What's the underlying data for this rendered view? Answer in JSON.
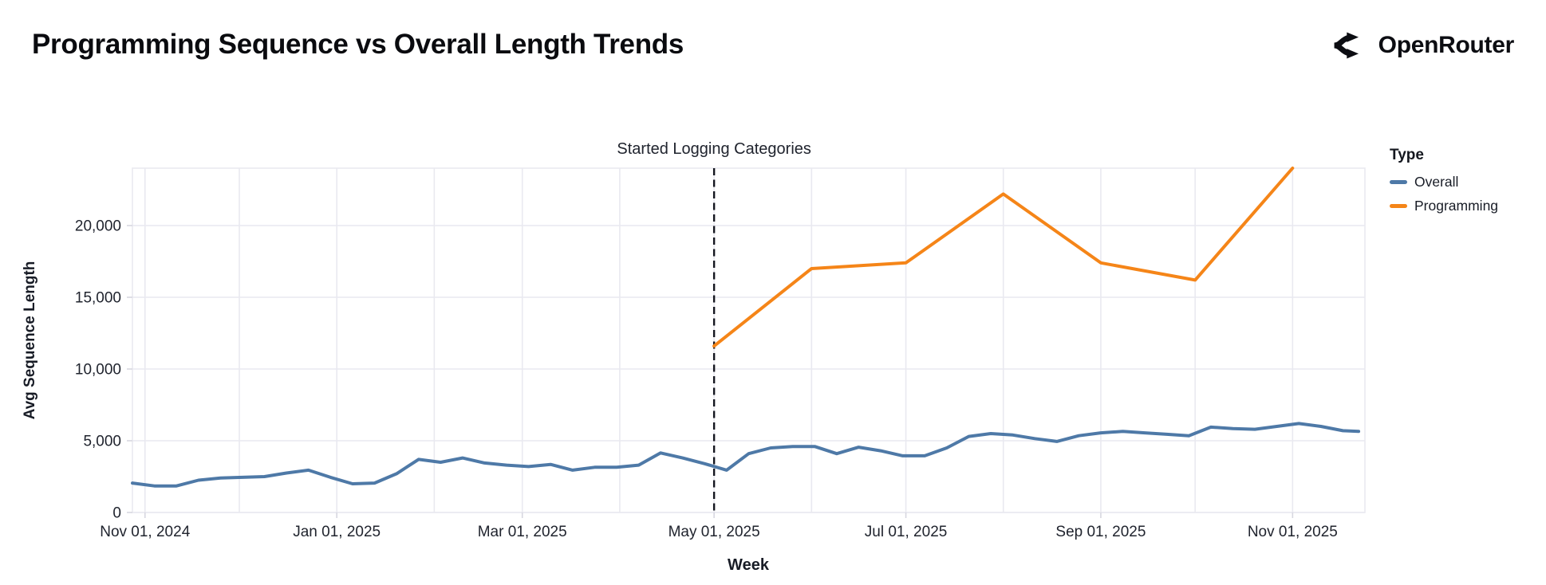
{
  "header": {
    "brand": "OpenRouter"
  },
  "legend": {
    "title": "Type",
    "items": [
      {
        "label": "Overall",
        "color": "#4e79a7"
      },
      {
        "label": "Programming",
        "color": "#f58518"
      }
    ]
  },
  "annotation": {
    "text": "Started Logging Categories",
    "date": "2025-05-01"
  },
  "colors": {
    "grid": "#e9e9f0",
    "tick_mark": "#d7d7e0",
    "tick_text": "#20242e",
    "dashed_rule": "#14161f",
    "overall_line": "#4e79a7",
    "programming_line": "#f58518"
  },
  "chart_data": {
    "type": "line",
    "title": "Programming Sequence vs Overall Length Trends",
    "xlabel": "Week",
    "ylabel": "Avg Sequence Length",
    "x_domain": [
      "2024-10-28",
      "2025-11-24"
    ],
    "ylim": [
      0,
      24000
    ],
    "grid": true,
    "legend_position": "right",
    "y_ticks": [
      {
        "value": 0,
        "label": "0"
      },
      {
        "value": 5000,
        "label": "5,000"
      },
      {
        "value": 10000,
        "label": "10,000"
      },
      {
        "value": 15000,
        "label": "15,000"
      },
      {
        "value": 20000,
        "label": "20,000"
      }
    ],
    "x_ticks": [
      {
        "date": "2024-11-01",
        "label": "Nov 01, 2024"
      },
      {
        "date": "2025-01-01",
        "label": "Jan 01, 2025"
      },
      {
        "date": "2025-03-01",
        "label": "Mar 01, 2025"
      },
      {
        "date": "2025-05-01",
        "label": "May 01, 2025"
      },
      {
        "date": "2025-07-01",
        "label": "Jul 01, 2025"
      },
      {
        "date": "2025-09-01",
        "label": "Sep 01, 2025"
      },
      {
        "date": "2025-11-01",
        "label": "Nov 01, 2025"
      }
    ],
    "month_gridlines": [
      "2024-11-01",
      "2024-12-01",
      "2025-01-01",
      "2025-02-01",
      "2025-03-01",
      "2025-04-01",
      "2025-05-01",
      "2025-06-01",
      "2025-07-01",
      "2025-08-01",
      "2025-09-01",
      "2025-10-01",
      "2025-11-01"
    ],
    "series": [
      {
        "name": "Overall",
        "color": "#4e79a7",
        "points": [
          [
            "2024-10-28",
            2050
          ],
          [
            "2024-11-04",
            1850
          ],
          [
            "2024-11-11",
            1850
          ],
          [
            "2024-11-18",
            2250
          ],
          [
            "2024-11-25",
            2400
          ],
          [
            "2024-12-02",
            2450
          ],
          [
            "2024-12-09",
            2500
          ],
          [
            "2024-12-16",
            2750
          ],
          [
            "2024-12-23",
            2950
          ],
          [
            "2024-12-30",
            2450
          ],
          [
            "2025-01-06",
            2000
          ],
          [
            "2025-01-13",
            2050
          ],
          [
            "2025-01-20",
            2700
          ],
          [
            "2025-01-27",
            3700
          ],
          [
            "2025-02-03",
            3500
          ],
          [
            "2025-02-10",
            3800
          ],
          [
            "2025-02-17",
            3450
          ],
          [
            "2025-02-24",
            3300
          ],
          [
            "2025-03-03",
            3200
          ],
          [
            "2025-03-10",
            3350
          ],
          [
            "2025-03-17",
            2950
          ],
          [
            "2025-03-24",
            3150
          ],
          [
            "2025-03-31",
            3150
          ],
          [
            "2025-04-07",
            3300
          ],
          [
            "2025-04-14",
            4150
          ],
          [
            "2025-04-21",
            3800
          ],
          [
            "2025-04-28",
            3400
          ],
          [
            "2025-05-05",
            2950
          ],
          [
            "2025-05-12",
            4100
          ],
          [
            "2025-05-19",
            4500
          ],
          [
            "2025-05-26",
            4600
          ],
          [
            "2025-06-02",
            4600
          ],
          [
            "2025-06-09",
            4100
          ],
          [
            "2025-06-16",
            4550
          ],
          [
            "2025-06-23",
            4300
          ],
          [
            "2025-06-30",
            3950
          ],
          [
            "2025-07-07",
            3950
          ],
          [
            "2025-07-14",
            4500
          ],
          [
            "2025-07-21",
            5300
          ],
          [
            "2025-07-28",
            5500
          ],
          [
            "2025-08-04",
            5400
          ],
          [
            "2025-08-11",
            5150
          ],
          [
            "2025-08-18",
            4950
          ],
          [
            "2025-08-25",
            5350
          ],
          [
            "2025-09-01",
            5550
          ],
          [
            "2025-09-08",
            5650
          ],
          [
            "2025-09-15",
            5550
          ],
          [
            "2025-09-22",
            5450
          ],
          [
            "2025-09-29",
            5350
          ],
          [
            "2025-10-06",
            5950
          ],
          [
            "2025-10-13",
            5850
          ],
          [
            "2025-10-20",
            5800
          ],
          [
            "2025-10-27",
            6000
          ],
          [
            "2025-11-03",
            6200
          ],
          [
            "2025-11-10",
            6000
          ],
          [
            "2025-11-17",
            5700
          ],
          [
            "2025-11-22",
            5650
          ]
        ]
      },
      {
        "name": "Programming",
        "color": "#f58518",
        "points": [
          [
            "2025-05-01",
            11600
          ],
          [
            "2025-06-01",
            17000
          ],
          [
            "2025-07-01",
            17400
          ],
          [
            "2025-08-01",
            22200
          ],
          [
            "2025-09-01",
            17400
          ],
          [
            "2025-10-01",
            16200
          ],
          [
            "2025-11-01",
            24000
          ]
        ]
      }
    ]
  }
}
